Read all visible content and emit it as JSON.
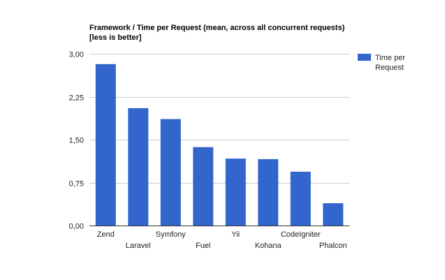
{
  "chart_data": {
    "type": "bar",
    "title": "Framework / Time per Request (mean, across all concurrent requests)",
    "subtitle": "[less is better]",
    "xlabel": "",
    "ylabel": "",
    "categories": [
      "Zend",
      "Laravel",
      "Symfony",
      "Fuel",
      "Yii",
      "Kohana",
      "CodeIgniter",
      "Phalcon"
    ],
    "series": [
      {
        "name": "Time per Request",
        "values": [
          2.82,
          2.05,
          1.86,
          1.37,
          1.17,
          1.16,
          0.94,
          0.39
        ],
        "color": "#3366cc"
      }
    ],
    "ylim": [
      0,
      3
    ],
    "yticks": [
      0,
      0.75,
      1.5,
      2.25,
      3
    ],
    "ytick_labels": [
      "0,00",
      "0,75",
      "1,50",
      "2,25",
      "3,00"
    ],
    "grid": true,
    "legend": {
      "position": "right",
      "entries": [
        {
          "lines": [
            "Time per",
            "Request"
          ],
          "color": "#3366cc"
        }
      ]
    }
  }
}
